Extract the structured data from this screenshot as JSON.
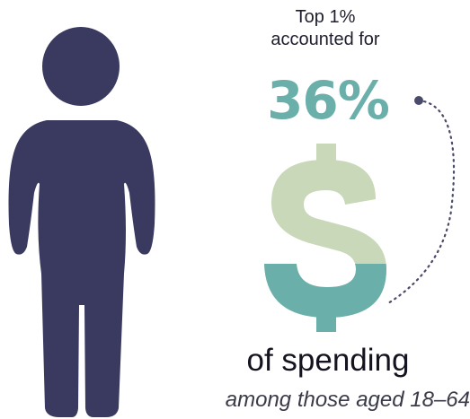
{
  "headline": {
    "line1": "Top 1%",
    "line2": "accounted for"
  },
  "stat": {
    "value": "36%",
    "fill_fraction": 0.36
  },
  "dollar_glyph": "$",
  "caption": {
    "main": "of spending",
    "sub": "among those aged 18–64"
  },
  "colors": {
    "person": "#3a3a60",
    "accent_teal": "#6aafaa",
    "dollar_light": "#c8d8b8",
    "dots": "#4a4a6a",
    "text": "#1e1e2e"
  },
  "icons": {
    "person": "person-silhouette-icon",
    "dollar": "dollar-sign-icon",
    "connector": "dotted-arc-connector"
  }
}
